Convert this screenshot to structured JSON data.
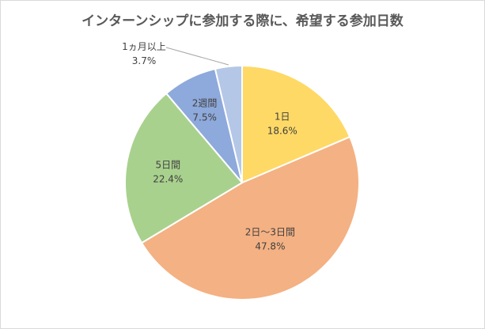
{
  "chart_data": {
    "type": "pie",
    "title": "インターンシップに参加する際に、希望する参加日数",
    "categories": [
      "1日",
      "2日～3日間",
      "5日間",
      "2週間",
      "1ヵ月以上"
    ],
    "values": [
      18.6,
      47.8,
      22.4,
      7.5,
      3.7
    ],
    "value_labels": [
      "18.6%",
      "47.8%",
      "22.4%",
      "7.5%",
      "3.7%"
    ],
    "colors": [
      "#FFD966",
      "#F4B183",
      "#A9D18E",
      "#8EA9DB",
      "#B4C7E7"
    ],
    "start_angle": "12 o'clock",
    "direction": "clockwise",
    "legend": "none"
  }
}
